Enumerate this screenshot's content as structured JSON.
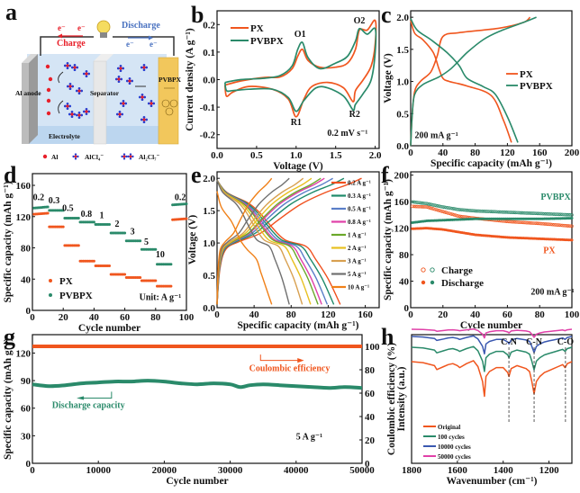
{
  "figure": {
    "panel_letters": [
      "a",
      "b",
      "c",
      "d",
      "e",
      "f",
      "g",
      "h"
    ]
  },
  "diagram_a": {
    "charge_label": "Charge",
    "discharge_label": "Discharge",
    "electron_label": "e⁻",
    "anode_label": "Al anode",
    "separator_label": "Separator",
    "electrolyte_label": "Electrolyte",
    "cathode_label": "PVBPX",
    "legend": [
      {
        "label": "Al",
        "color": "#e8202a"
      },
      {
        "label": "AlCl₄⁻",
        "color": "#2a3fd0"
      },
      {
        "label": "Al₂Cl₇⁻",
        "color": "#2a3fd0"
      }
    ],
    "colors": {
      "charge": "#e8202a",
      "discharge": "#3a68c8",
      "cathode": "#f2c75c",
      "anode": "#b8b8b8",
      "electrolyte": "#cfe0f3"
    }
  },
  "chart_data": [
    {
      "id": "b",
      "type": "line",
      "title": "",
      "xlabel": "Voltage (V)",
      "ylabel": "Current density (A g⁻¹)",
      "xlim": [
        0.0,
        2.05
      ],
      "ylim": [
        -0.25,
        0.25
      ],
      "xticks": [
        0.0,
        0.5,
        1.0,
        1.5,
        2.0
      ],
      "yticks": [
        -0.2,
        -0.1,
        0.0,
        0.1,
        0.2
      ],
      "xtick_labels": [
        "0.0",
        "0.5",
        "1.0",
        "1.5",
        "2.0"
      ],
      "ytick_labels": [
        "-0.2",
        "-0.1",
        "0.0",
        "0.1",
        "0.2"
      ],
      "legend": "top-left",
      "annotations": [
        {
          "text": "O1",
          "x": 1.05,
          "y": 0.155
        },
        {
          "text": "O2",
          "x": 1.8,
          "y": 0.205
        },
        {
          "text": "R1",
          "x": 1.0,
          "y": -0.165
        },
        {
          "text": "R2",
          "x": 1.74,
          "y": -0.135
        },
        {
          "text": "0.2 mV s⁻¹",
          "x": 1.65,
          "y": -0.205
        }
      ],
      "series": [
        {
          "name": "PX",
          "color": "#f0561e",
          "x": [
            0.1,
            0.3,
            0.6,
            0.8,
            0.95,
            1.02,
            1.08,
            1.15,
            1.3,
            1.5,
            1.65,
            1.75,
            1.8,
            1.9,
            2.0,
            2.0,
            1.95,
            1.85,
            1.75,
            1.72,
            1.6,
            1.4,
            1.2,
            1.1,
            1.0,
            0.9,
            0.7,
            0.4,
            0.2,
            0.12,
            0.1
          ],
          "y": [
            -0.02,
            -0.005,
            0.008,
            0.01,
            0.04,
            0.085,
            0.11,
            0.07,
            0.045,
            0.045,
            0.06,
            0.11,
            0.18,
            0.18,
            0.215,
            0.13,
            0.05,
            0.0,
            -0.04,
            -0.08,
            -0.03,
            -0.01,
            -0.025,
            -0.07,
            -0.135,
            -0.07,
            -0.035,
            -0.025,
            -0.045,
            -0.06,
            -0.02
          ]
        },
        {
          "name": "PVBPX",
          "color": "#2a8a6a",
          "x": [
            0.1,
            0.3,
            0.6,
            0.8,
            0.95,
            1.02,
            1.08,
            1.15,
            1.3,
            1.5,
            1.65,
            1.75,
            1.8,
            1.9,
            2.0,
            2.0,
            1.95,
            1.85,
            1.75,
            1.72,
            1.6,
            1.4,
            1.25,
            1.1,
            1.0,
            0.9,
            0.7,
            0.4,
            0.2,
            0.12,
            0.1
          ],
          "y": [
            -0.01,
            0.0,
            0.005,
            0.015,
            0.05,
            0.11,
            0.135,
            0.08,
            0.04,
            0.06,
            0.085,
            0.14,
            0.185,
            0.165,
            0.185,
            0.1,
            0.0,
            -0.05,
            -0.09,
            -0.11,
            -0.06,
            -0.03,
            -0.03,
            -0.075,
            -0.115,
            -0.065,
            -0.035,
            -0.035,
            -0.04,
            -0.04,
            -0.01
          ]
        }
      ]
    },
    {
      "id": "c",
      "type": "line",
      "xlabel": "Specific capacity (mAh g⁻¹)",
      "ylabel": "Voltage (V)",
      "xlim": [
        0,
        200
      ],
      "ylim": [
        0.0,
        2.1
      ],
      "xticks": [
        0,
        40,
        80,
        120,
        160,
        200
      ],
      "yticks": [
        0.0,
        0.5,
        1.0,
        1.5,
        2.0
      ],
      "xtick_labels": [
        "0",
        "40",
        "80",
        "120",
        "160",
        "200"
      ],
      "ytick_labels": [
        "0.0",
        "0.5",
        "1.0",
        "1.5",
        "2.0"
      ],
      "legend": "center-right",
      "annotations": [
        {
          "text": "200 mA g⁻¹",
          "x": 5,
          "y": 0.12
        }
      ],
      "series": [
        {
          "name": "PX",
          "color": "#f0561e",
          "curves": [
            {
              "x": [
                0,
                5,
                15,
                28,
                35,
                40,
                48,
                70,
                100,
                115,
                125
              ],
              "y": [
                1.95,
                1.75,
                1.65,
                1.45,
                1.2,
                1.05,
                1.0,
                0.93,
                0.78,
                0.4,
                0.05
              ]
            },
            {
              "x": [
                0,
                2,
                5,
                12,
                25,
                33,
                40,
                60,
                110,
                140,
                148
              ],
              "y": [
                0.0,
                0.5,
                0.85,
                1.0,
                1.15,
                1.4,
                1.7,
                1.76,
                1.83,
                1.92,
                2.0
              ]
            }
          ]
        },
        {
          "name": "PVBPX",
          "color": "#2a8a6a",
          "curves": [
            {
              "x": [
                0,
                8,
                25,
                45,
                60,
                70,
                90,
                105,
                120,
                133
              ],
              "y": [
                1.98,
                1.8,
                1.65,
                1.45,
                1.25,
                1.05,
                0.92,
                0.8,
                0.45,
                0.05
              ]
            },
            {
              "x": [
                0,
                2,
                5,
                15,
                35,
                50,
                70,
                90,
                110,
                140,
                156
              ],
              "y": [
                0.0,
                0.5,
                0.8,
                0.95,
                1.07,
                1.2,
                1.45,
                1.65,
                1.78,
                1.92,
                2.0
              ]
            }
          ]
        }
      ]
    },
    {
      "id": "d",
      "type": "scatter",
      "xlabel": "Cycle number",
      "ylabel": "Specific capacity (mAh g⁻¹)",
      "xlim": [
        0,
        100
      ],
      "ylim": [
        0,
        175
      ],
      "xticks": [
        0,
        20,
        40,
        60,
        80,
        100
      ],
      "yticks": [
        0,
        40,
        80,
        120,
        160
      ],
      "xtick_labels": [
        "0",
        "20",
        "40",
        "60",
        "80",
        "100"
      ],
      "ytick_labels": [
        "0",
        "40",
        "80",
        "120",
        "160"
      ],
      "legend": "bottom-left",
      "annotations": [
        {
          "text": "Unit: A g⁻¹",
          "x": 83,
          "y": 13
        }
      ],
      "rate_labels": [
        {
          "text": "0.2",
          "x": 4,
          "y": 141
        },
        {
          "text": "0.3",
          "x": 14,
          "y": 137
        },
        {
          "text": "0.5",
          "x": 23,
          "y": 127
        },
        {
          "text": "0.8",
          "x": 35,
          "y": 120
        },
        {
          "text": "1",
          "x": 45,
          "y": 118
        },
        {
          "text": "2",
          "x": 55,
          "y": 107
        },
        {
          "text": "3",
          "x": 65,
          "y": 97
        },
        {
          "text": "5",
          "x": 74,
          "y": 84
        },
        {
          "text": "10",
          "x": 83,
          "y": 68
        },
        {
          "text": "0.2",
          "x": 96,
          "y": 141
        }
      ],
      "series": [
        {
          "name": "PX",
          "color": "#f0561e",
          "segment_values": [
            123,
            107,
            83,
            63,
            57,
            46,
            42,
            38,
            31,
            116
          ]
        },
        {
          "name": "PVBPX",
          "color": "#2a8a6a",
          "segment_values": [
            131,
            128,
            118,
            113,
            110,
            99,
            89,
            78,
            59,
            135
          ]
        }
      ]
    },
    {
      "id": "e",
      "type": "line",
      "xlabel": "Specific capacity (mAh g⁻¹)",
      "ylabel": "Voltage (V)",
      "xlim": [
        0,
        175
      ],
      "ylim": [
        0.0,
        2.1
      ],
      "xticks": [
        0,
        40,
        80,
        120,
        160
      ],
      "yticks": [
        0.0,
        0.5,
        1.0,
        1.5,
        2.0
      ],
      "xtick_labels": [
        "0",
        "40",
        "80",
        "120",
        "160"
      ],
      "ytick_labels": [
        "0.0",
        "0.5",
        "1.0",
        "1.5",
        "2.0"
      ],
      "legend": "right",
      "series": [
        {
          "name": "0.2 A g⁻¹",
          "color": "#f0501e",
          "discharge_cap": 133,
          "charge_cap": 156
        },
        {
          "name": "0.3 A g⁻¹",
          "color": "#1f8a6a",
          "discharge_cap": 126,
          "charge_cap": 137
        },
        {
          "name": "0.5 A g⁻¹",
          "color": "#5a7ec8",
          "discharge_cap": 119,
          "charge_cap": 125
        },
        {
          "name": "0.8 A g⁻¹",
          "color": "#e040a8",
          "discharge_cap": 113,
          "charge_cap": 116
        },
        {
          "name": "1 A g⁻¹",
          "color": "#6aa82a",
          "discharge_cap": 109,
          "charge_cap": 112
        },
        {
          "name": "2 A g⁻¹",
          "color": "#e8c020",
          "discharge_cap": 101,
          "charge_cap": 102
        },
        {
          "name": "3 A g⁻¹",
          "color": "#d8a050",
          "discharge_cap": 92,
          "charge_cap": 93
        },
        {
          "name": "5 A g⁻¹",
          "color": "#707070",
          "discharge_cap": 78,
          "charge_cap": 78
        },
        {
          "name": "10 A g⁻¹",
          "color": "#f08018",
          "discharge_cap": 59,
          "charge_cap": 59
        }
      ]
    },
    {
      "id": "f",
      "type": "scatter",
      "xlabel": "Cycle number",
      "ylabel": "Specific capacity (mAh g⁻¹)",
      "xlim": [
        0,
        100
      ],
      "ylim": [
        0,
        205
      ],
      "xticks": [
        0,
        20,
        40,
        60,
        80,
        100
      ],
      "yticks": [
        0,
        40,
        80,
        120,
        160,
        200
      ],
      "xtick_labels": [
        "0",
        "20",
        "40",
        "60",
        "80",
        "100"
      ],
      "ytick_labels": [
        "0",
        "40",
        "80",
        "120",
        "160",
        "200"
      ],
      "legend": "bottom-left",
      "legend_labels": [
        "Charge",
        "Discharge"
      ],
      "annotations": [
        {
          "text": "PVBPX",
          "x": 90,
          "y": 163,
          "color": "#2a8a6a"
        },
        {
          "text": "PX",
          "x": 86,
          "y": 82,
          "color": "#f0561e"
        },
        {
          "text": "200 mA g⁻¹",
          "x": 88,
          "y": 20
        }
      ],
      "series": [
        {
          "name": "PX charge",
          "color": "#f0561e",
          "marker": "open",
          "x": [
            0,
            10,
            20,
            30,
            40,
            60,
            80,
            100
          ],
          "y": [
            153,
            152,
            145,
            138,
            135,
            130,
            127,
            123
          ]
        },
        {
          "name": "PX discharge",
          "color": "#f0561e",
          "marker": "filled",
          "x": [
            0,
            10,
            20,
            30,
            40,
            60,
            80,
            100
          ],
          "y": [
            119,
            120,
            118,
            114,
            110,
            106,
            104,
            102
          ]
        },
        {
          "name": "PVBPX charge",
          "color": "#2a8a6a",
          "marker": "open",
          "x": [
            0,
            10,
            20,
            30,
            40,
            60,
            80,
            100
          ],
          "y": [
            160,
            157,
            152,
            148,
            146,
            144,
            142,
            140
          ]
        },
        {
          "name": "PVBPX discharge",
          "color": "#2a8a6a",
          "marker": "filled",
          "x": [
            0,
            10,
            20,
            30,
            40,
            60,
            80,
            100
          ],
          "y": [
            128,
            131,
            132,
            133,
            134,
            134,
            134,
            135
          ]
        }
      ]
    },
    {
      "id": "g",
      "type": "scatter",
      "xlabel": "Cycle number",
      "ylabel": "Specific capacity (mAh g⁻¹)",
      "y2label": "Coulombic efficiency (%)",
      "xlim": [
        0,
        50000
      ],
      "ylim": [
        0,
        140
      ],
      "y2lim": [
        0,
        110
      ],
      "xticks": [
        0,
        10000,
        20000,
        30000,
        40000,
        50000
      ],
      "yticks": [
        0,
        30,
        60,
        90,
        120
      ],
      "y2ticks": [
        0,
        20,
        40,
        60,
        80,
        100
      ],
      "xtick_labels": [
        "0",
        "10000",
        "20000",
        "30000",
        "40000",
        "50000"
      ],
      "ytick_labels": [
        "0",
        "30",
        "60",
        "90",
        "120"
      ],
      "y2tick_labels": [
        "0",
        "20",
        "40",
        "60",
        "80",
        "100"
      ],
      "annotations": [
        {
          "text": "Coulombic efficiency",
          "color": "#f0561e"
        },
        {
          "text": "Discharge capacity",
          "color": "#2a8a6a"
        },
        {
          "text": "5 A g⁻¹"
        }
      ],
      "series": [
        {
          "name": "Coulombic efficiency",
          "axis": "right",
          "color": "#f0561e",
          "x": [
            0,
            50000
          ],
          "y": [
            100,
            100
          ]
        },
        {
          "name": "Discharge capacity",
          "axis": "left",
          "color": "#2a8a6a",
          "x": [
            0,
            2500,
            5000,
            7500,
            10000,
            12500,
            15000,
            17500,
            20000,
            22500,
            25000,
            27500,
            30000,
            31500,
            33000,
            35000,
            37500,
            40000,
            42500,
            45000,
            47500,
            50000
          ],
          "y": [
            86,
            84,
            85,
            87,
            88,
            89,
            89,
            90,
            89,
            87,
            86,
            87,
            86,
            83,
            85,
            86,
            85,
            84,
            83,
            82,
            83,
            82
          ]
        }
      ]
    },
    {
      "id": "h",
      "type": "line",
      "xlabel": "Wavenumber (cm⁻¹)",
      "ylabel": "Intensity (a.u.)",
      "xlim": [
        1800,
        1100
      ],
      "xticks": [
        1800,
        1600,
        1400,
        1200
      ],
      "xtick_labels": [
        "1800",
        "1600",
        "1400",
        "1200"
      ],
      "legend": "bottom-left",
      "annotations": [
        {
          "text": "C-N",
          "x": 1375
        },
        {
          "text": "C-N",
          "x": 1265
        },
        {
          "text": "C-O",
          "x": 1128
        }
      ],
      "series": [
        {
          "name": "Original",
          "color": "#f0561e",
          "offset": 0
        },
        {
          "name": "100 cycles",
          "color": "#2a8a6a",
          "offset": 1
        },
        {
          "name": "10000 cycles",
          "color": "#3a58b0",
          "offset": 2
        },
        {
          "name": "50000 cycles",
          "color": "#e040a8",
          "offset": 3
        }
      ]
    }
  ]
}
